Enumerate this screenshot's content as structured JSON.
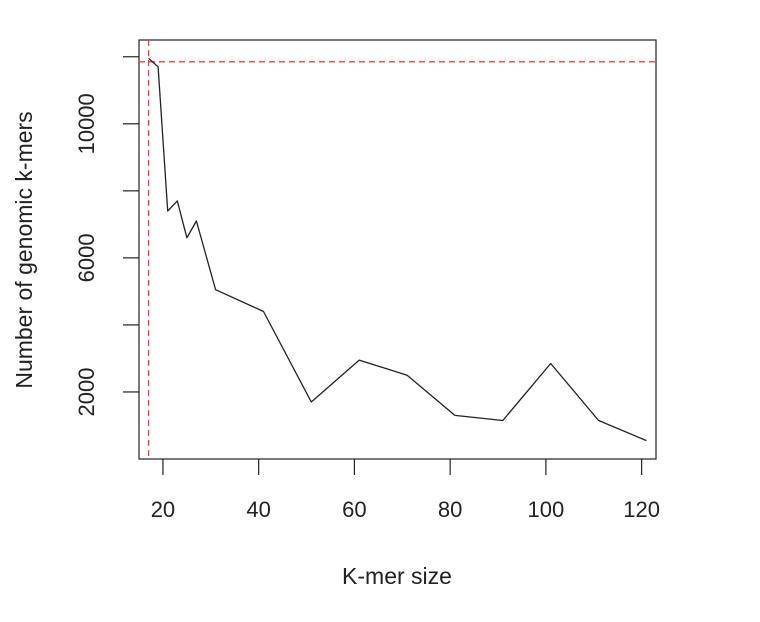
{
  "chart_data": {
    "type": "line",
    "title": "",
    "xlabel": "K-mer size",
    "ylabel": "Number of genomic k-mers",
    "xlim": [
      15,
      123
    ],
    "ylim": [
      0,
      12500
    ],
    "xticks": [
      20,
      40,
      60,
      80,
      100,
      120
    ],
    "xtick_labels": [
      "20",
      "40",
      "60",
      "80",
      "100",
      "120"
    ],
    "yticks": [
      2000,
      4000,
      6000,
      8000,
      10000,
      12000
    ],
    "ytick_labels": [
      "2000",
      "",
      "6000",
      "",
      "10000",
      ""
    ],
    "grid": false,
    "legend": "none",
    "series": [
      {
        "x": [
          17,
          19,
          21,
          23,
          25,
          27,
          31,
          41,
          51,
          61,
          71,
          81,
          91,
          101,
          111,
          121
        ],
        "y": [
          11950,
          11700,
          7400,
          7700,
          6600,
          7100,
          5050,
          4400,
          1700,
          2950,
          2500,
          1300,
          1150,
          2850,
          1150,
          550
        ]
      }
    ],
    "reference_lines": [
      {
        "orientation": "horizontal",
        "value": 11850,
        "style": "dashed",
        "color": "#ff3b3b"
      },
      {
        "orientation": "vertical",
        "value": 17,
        "style": "dashed",
        "color": "#ff3b3b"
      }
    ],
    "colors": {
      "line": "#222222",
      "axis": "#222222",
      "reference": "#ff3b3b"
    }
  }
}
